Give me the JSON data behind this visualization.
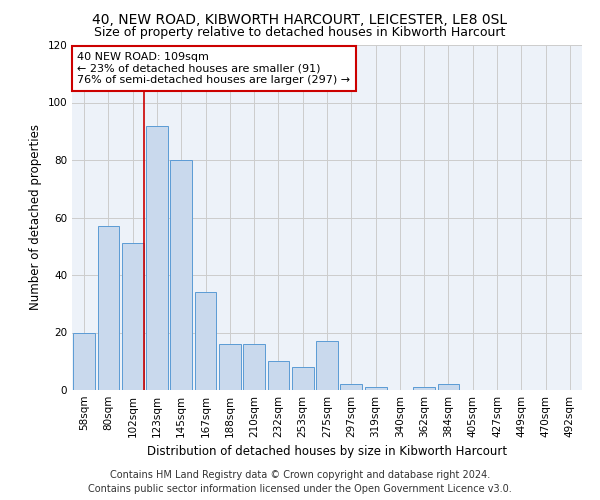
{
  "title": "40, NEW ROAD, KIBWORTH HARCOURT, LEICESTER, LE8 0SL",
  "subtitle": "Size of property relative to detached houses in Kibworth Harcourt",
  "xlabel": "Distribution of detached houses by size in Kibworth Harcourt",
  "ylabel": "Number of detached properties",
  "categories": [
    "58sqm",
    "80sqm",
    "102sqm",
    "123sqm",
    "145sqm",
    "167sqm",
    "188sqm",
    "210sqm",
    "232sqm",
    "253sqm",
    "275sqm",
    "297sqm",
    "319sqm",
    "340sqm",
    "362sqm",
    "384sqm",
    "405sqm",
    "427sqm",
    "449sqm",
    "470sqm",
    "492sqm"
  ],
  "values": [
    20,
    57,
    51,
    92,
    80,
    34,
    16,
    16,
    10,
    8,
    17,
    2,
    1,
    0,
    1,
    2,
    0,
    0,
    0,
    0,
    0
  ],
  "bar_color": "#c9d9ed",
  "bar_edgecolor": "#5b9bd5",
  "annotation_text_line1": "40 NEW ROAD: 109sqm",
  "annotation_text_line2": "← 23% of detached houses are smaller (91)",
  "annotation_text_line3": "76% of semi-detached houses are larger (297) →",
  "annotation_box_color": "#ffffff",
  "annotation_box_edgecolor": "#cc0000",
  "vline_color": "#cc0000",
  "vline_x": 2.45,
  "ylim": [
    0,
    120
  ],
  "yticks": [
    0,
    20,
    40,
    60,
    80,
    100,
    120
  ],
  "grid_color": "#cccccc",
  "background_color": "#edf2f9",
  "footer_line1": "Contains HM Land Registry data © Crown copyright and database right 2024.",
  "footer_line2": "Contains public sector information licensed under the Open Government Licence v3.0.",
  "title_fontsize": 10,
  "subtitle_fontsize": 9,
  "axis_label_fontsize": 8.5,
  "tick_fontsize": 7.5,
  "annotation_fontsize": 8,
  "footer_fontsize": 7
}
